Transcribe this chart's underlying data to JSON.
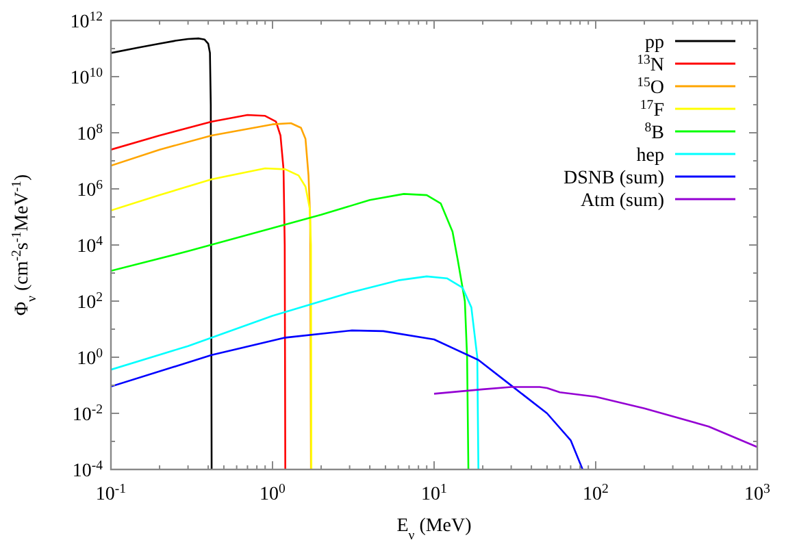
{
  "chart_data": {
    "type": "line",
    "xlabel": "E$_{ν}$ (MeV)",
    "ylabel": "Φ$_{ν}$ (cm$^{-2}$s$^{-1}$MeV$^{-1}$)",
    "log": "xy",
    "grid": false,
    "legend": "top right",
    "marker": "none",
    "line_style": "solid",
    "xlim": [
      0.1,
      1000
    ],
    "ylim": [
      0.0001,
      1000000000000.0
    ],
    "xticks": [
      {
        "value": 0.1,
        "label": "10$^{-1}$"
      },
      {
        "value": 0.2,
        "label": null
      },
      {
        "value": 0.3,
        "label": null
      },
      {
        "value": 0.4,
        "label": null
      },
      {
        "value": 0.5,
        "label": null
      },
      {
        "value": 0.6,
        "label": null
      },
      {
        "value": 0.7,
        "label": null
      },
      {
        "value": 0.8,
        "label": null
      },
      {
        "value": 0.9,
        "label": null
      },
      {
        "value": 1,
        "label": "10$^{0}$"
      },
      {
        "value": 2,
        "label": null
      },
      {
        "value": 3,
        "label": null
      },
      {
        "value": 4,
        "label": null
      },
      {
        "value": 5,
        "label": null
      },
      {
        "value": 6,
        "label": null
      },
      {
        "value": 7,
        "label": null
      },
      {
        "value": 8,
        "label": null
      },
      {
        "value": 9,
        "label": null
      },
      {
        "value": 10,
        "label": "10$^{1}$"
      },
      {
        "value": 20,
        "label": null
      },
      {
        "value": 30,
        "label": null
      },
      {
        "value": 40,
        "label": null
      },
      {
        "value": 50,
        "label": null
      },
      {
        "value": 60,
        "label": null
      },
      {
        "value": 70,
        "label": null
      },
      {
        "value": 80,
        "label": null
      },
      {
        "value": 90,
        "label": null
      },
      {
        "value": 100,
        "label": "10$^{2}$"
      },
      {
        "value": 200,
        "label": null
      },
      {
        "value": 300,
        "label": null
      },
      {
        "value": 400,
        "label": null
      },
      {
        "value": 500,
        "label": null
      },
      {
        "value": 600,
        "label": null
      },
      {
        "value": 700,
        "label": null
      },
      {
        "value": 800,
        "label": null
      },
      {
        "value": 900,
        "label": null
      },
      {
        "value": 1000,
        "label": "10$^{3}$"
      }
    ],
    "yticks": [
      {
        "value": 0.0001,
        "label": "10$^{-4}$"
      },
      {
        "value": 0.001,
        "label": null
      },
      {
        "value": 0.01,
        "label": "10$^{-2}$"
      },
      {
        "value": 0.1,
        "label": null
      },
      {
        "value": 1,
        "label": "10$^{0}$"
      },
      {
        "value": 10,
        "label": null
      },
      {
        "value": 100,
        "label": "10$^{2}$"
      },
      {
        "value": 1000.0,
        "label": null
      },
      {
        "value": 10000.0,
        "label": "10$^{4}$"
      },
      {
        "value": 100000.0,
        "label": null
      },
      {
        "value": 1000000.0,
        "label": "10$^{6}$"
      },
      {
        "value": 10000000.0,
        "label": null
      },
      {
        "value": 100000000.0,
        "label": "10$^{8}$"
      },
      {
        "value": 1000000000.0,
        "label": null
      },
      {
        "value": 10000000000.0,
        "label": "10$^{10}$"
      },
      {
        "value": 100000000000.0,
        "label": null
      },
      {
        "value": 1000000000000.0,
        "label": "10$^{12}$"
      }
    ],
    "series": [
      {
        "name": "pp",
        "color": "#000000",
        "x": [
          0.1,
          0.15,
          0.2,
          0.25,
          0.3,
          0.35,
          0.38,
          0.4,
          0.41,
          0.415,
          0.42
        ],
        "values": [
          70000000000.0,
          110000000000.0,
          150000000000.0,
          190000000000.0,
          220000000000.0,
          230000000000.0,
          210000000000.0,
          150000000000.0,
          70000000000.0,
          1000000000.0,
          0.0001
        ]
      },
      {
        "name": "$^{13}$N",
        "color": "#ff0000",
        "x": [
          0.1,
          0.2,
          0.42,
          0.7,
          0.9,
          1.05,
          1.12,
          1.17,
          1.19,
          1.2
        ],
        "values": [
          25000000.0,
          80000000.0,
          250000000.0,
          430000000.0,
          400000000.0,
          250000000.0,
          80000000.0,
          5000000.0,
          10000.0,
          0.0001
        ]
      },
      {
        "name": "$^{15}$O",
        "color": "#ffa500",
        "x": [
          0.1,
          0.2,
          0.42,
          1.0,
          1.3,
          1.5,
          1.6,
          1.67,
          1.71,
          1.73
        ],
        "values": [
          6700000.0,
          25000000.0,
          80000000.0,
          200000000.0,
          220000000.0,
          150000000.0,
          60000000.0,
          3000000.0,
          100000.0,
          0.0001
        ]
      },
      {
        "name": "$^{17}$F",
        "color": "#ffff00",
        "x": [
          0.1,
          0.2,
          0.42,
          0.9,
          1.2,
          1.45,
          1.6,
          1.7,
          1.73,
          1.74
        ],
        "values": [
          170000.0,
          600000.0,
          2200000.0,
          5400000.0,
          5000000.0,
          3000000.0,
          1200000.0,
          200000.0,
          10000.0,
          0.0001
        ]
      },
      {
        "name": "$^{8}$B",
        "color": "#00ff00",
        "x": [
          0.1,
          0.3,
          1,
          2,
          4,
          6.5,
          9,
          11,
          13,
          14,
          15.5,
          16,
          16.3
        ],
        "values": [
          1200.0,
          6000.0,
          40000.0,
          120000.0,
          400000.0,
          660000.0,
          600000.0,
          300000.0,
          30000.0,
          3000.0,
          100,
          1,
          0.0001
        ]
      },
      {
        "name": "hep",
        "color": "#00ffff",
        "x": [
          0.1,
          0.3,
          1,
          3,
          6,
          9,
          12,
          15,
          17,
          18.5,
          18.8
        ],
        "values": [
          0.36,
          2.5,
          30,
          200,
          550,
          760,
          650,
          300,
          60,
          1,
          0.0001
        ]
      },
      {
        "name": "DSNB (sum)",
        "color": "#0000ff",
        "x": [
          0.1,
          0.42,
          1.2,
          3.1,
          4.85,
          10,
          18.8,
          31,
          50,
          70,
          83
        ],
        "values": [
          0.09,
          1.2,
          5,
          9,
          8.5,
          4.3,
          0.8,
          0.085,
          0.01,
          0.0011,
          0.0001
        ]
      },
      {
        "name": "Atm (sum)",
        "color": "#9400d3",
        "x": [
          10,
          20,
          30,
          45,
          50,
          60,
          100,
          200,
          500,
          1000
        ],
        "values": [
          0.05,
          0.072,
          0.087,
          0.087,
          0.08,
          0.056,
          0.039,
          0.015,
          0.0034,
          0.00063
        ]
      }
    ]
  }
}
